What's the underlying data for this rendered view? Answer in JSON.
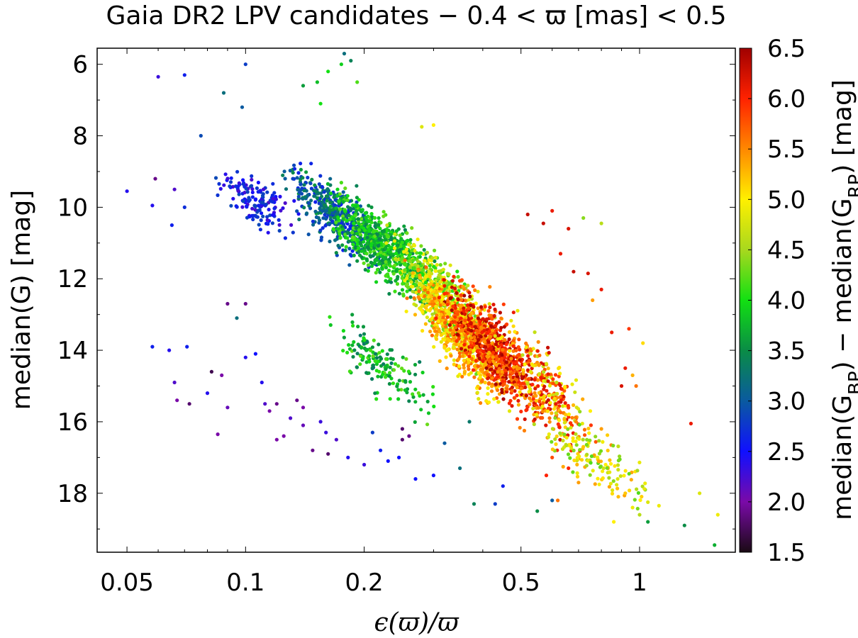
{
  "chart_data": {
    "type": "scatter",
    "title": "Gaia DR2 LPV candidates  −  0.4 < ϖ [mas] < 0.5",
    "xlabel": "ϵ(ϖ)/ϖ",
    "ylabel": "median(G)  [mag]",
    "colorbar_label": "median(G_BP) − median(G_RP)  [mag]",
    "x_scale": "log",
    "xlim": [
      0.042,
      1.75
    ],
    "ylim": [
      19.65,
      5.55
    ],
    "x_ticks": [
      0.05,
      0.1,
      0.2,
      0.5,
      1
    ],
    "x_tick_labels": [
      "0.05",
      "0.1",
      "0.2",
      "0.5",
      "1"
    ],
    "y_ticks": [
      6,
      8,
      10,
      12,
      14,
      16,
      18
    ],
    "y_tick_labels": [
      "6",
      "8",
      "10",
      "12",
      "14",
      "16",
      "18"
    ],
    "colorbar_range": [
      1.5,
      6.5
    ],
    "colorbar_ticks": [
      1.5,
      2.0,
      2.5,
      3.0,
      3.5,
      4.0,
      4.5,
      5.0,
      5.5,
      6.0,
      6.5
    ],
    "colorbar_tick_labels": [
      "1.5",
      "2.0",
      "2.5",
      "3.0",
      "3.5",
      "4.0",
      "4.5",
      "5.0",
      "5.5",
      "6.0",
      "6.5"
    ],
    "colorbar_colors": [
      "#1a0a14",
      "#7a0aa8",
      "#1010ff",
      "#0a5aa0",
      "#0a8c46",
      "#12e012",
      "#a8d81e",
      "#fff000",
      "#ff8800",
      "#ff2200",
      "#a00000"
    ],
    "grid": false,
    "colorbar_position": "right",
    "points": [
      [
        0.05,
        9.55,
        2.4
      ],
      [
        0.06,
        6.35,
        2.3
      ],
      [
        0.07,
        6.3,
        2.6
      ],
      [
        0.1,
        6.0,
        2.8
      ],
      [
        0.178,
        5.7,
        3.2
      ],
      [
        0.077,
        8.0,
        2.9
      ],
      [
        0.088,
        6.8,
        3.2
      ],
      [
        0.098,
        7.2,
        3.0
      ],
      [
        0.14,
        6.6,
        3.6
      ],
      [
        0.152,
        6.5,
        3.8
      ],
      [
        0.162,
        6.2,
        4.0
      ],
      [
        0.175,
        6.0,
        3.9
      ],
      [
        0.185,
        5.9,
        3.4
      ],
      [
        0.192,
        6.5,
        4.2
      ],
      [
        0.155,
        7.1,
        4.0
      ],
      [
        0.28,
        7.75,
        4.8
      ],
      [
        0.3,
        7.7,
        5.0
      ],
      [
        0.059,
        9.2,
        1.9
      ],
      [
        0.066,
        9.5,
        2.2
      ],
      [
        0.058,
        9.95,
        2.4
      ],
      [
        0.065,
        10.5,
        2.6
      ],
      [
        0.07,
        10.0,
        2.7
      ],
      [
        0.1,
        12.7,
        1.9
      ],
      [
        0.09,
        12.7,
        1.9
      ],
      [
        0.095,
        13.1,
        3.2
      ],
      [
        0.058,
        13.9,
        2.6
      ],
      [
        0.064,
        14.0,
        2.4
      ],
      [
        0.071,
        13.9,
        2.6
      ],
      [
        0.066,
        14.9,
        2.2
      ],
      [
        0.067,
        15.4,
        2.0
      ],
      [
        0.082,
        14.6,
        1.7
      ],
      [
        0.087,
        14.7,
        2.0
      ],
      [
        0.08,
        15.2,
        2.4
      ],
      [
        0.09,
        15.6,
        2.1
      ],
      [
        0.1,
        14.2,
        2.4
      ],
      [
        0.106,
        14.1,
        2.5
      ],
      [
        0.11,
        14.9,
        2.4
      ],
      [
        0.112,
        15.5,
        2.2
      ],
      [
        0.12,
        15.5,
        1.9
      ],
      [
        0.115,
        15.7,
        2.0
      ],
      [
        0.13,
        15.9,
        2.2
      ],
      [
        0.135,
        15.4,
        1.9
      ],
      [
        0.125,
        16.4,
        2.0
      ],
      [
        0.14,
        16.1,
        2.1
      ],
      [
        0.148,
        16.8,
        1.9
      ],
      [
        0.155,
        16.0,
        2.3
      ],
      [
        0.162,
        16.9,
        1.8
      ],
      [
        0.17,
        16.5,
        2.2
      ],
      [
        0.182,
        17.0,
        2.4
      ],
      [
        0.2,
        17.2,
        2.3
      ],
      [
        0.21,
        16.3,
        2.8
      ],
      [
        0.22,
        16.8,
        2.6
      ],
      [
        0.23,
        17.1,
        2.5
      ],
      [
        0.25,
        16.5,
        1.8
      ],
      [
        0.245,
        17.0,
        2.5
      ],
      [
        0.27,
        17.6,
        2.5
      ],
      [
        0.3,
        17.5,
        2.5
      ],
      [
        0.32,
        16.6,
        3.0
      ],
      [
        0.35,
        17.3,
        3.2
      ],
      [
        0.37,
        16.0,
        3.3
      ],
      [
        0.25,
        16.2,
        1.8
      ],
      [
        0.26,
        16.4,
        1.9
      ],
      [
        0.14,
        15.6,
        2.0
      ],
      [
        0.16,
        16.3,
        2.3
      ],
      [
        0.072,
        15.5,
        1.8
      ],
      [
        0.085,
        16.35,
        2.0
      ],
      [
        0.12,
        16.5,
        2.0
      ],
      [
        0.45,
        17.8,
        2.6
      ],
      [
        0.43,
        18.3,
        2.8
      ],
      [
        0.38,
        18.3,
        3.4
      ],
      [
        0.55,
        18.5,
        3.5
      ],
      [
        0.6,
        18.2,
        3.0
      ],
      [
        1.05,
        18.8,
        3.6
      ],
      [
        1.3,
        18.9,
        3.5
      ],
      [
        1.55,
        19.45,
        3.7
      ],
      [
        1.35,
        16.05,
        6.1
      ],
      [
        1.58,
        18.6,
        4.9
      ],
      [
        1.42,
        18.0,
        4.8
      ],
      [
        0.72,
        10.3,
        4.4
      ],
      [
        0.8,
        10.45,
        4.6
      ],
      [
        0.52,
        10.2,
        6.3
      ],
      [
        0.6,
        10.1,
        6.1
      ],
      [
        0.57,
        10.45,
        6.3
      ],
      [
        0.66,
        10.6,
        6.2
      ],
      [
        0.63,
        11.3,
        6.1
      ],
      [
        0.68,
        11.8,
        6.3
      ],
      [
        0.74,
        11.85,
        6.2
      ],
      [
        0.8,
        12.3,
        6.1
      ],
      [
        0.76,
        12.6,
        5.4
      ],
      [
        0.85,
        13.5,
        6.1
      ],
      [
        0.94,
        13.4,
        5.9
      ],
      [
        1.02,
        13.8,
        5.1
      ],
      [
        0.92,
        14.5,
        6.1
      ],
      [
        0.96,
        14.7,
        5.3
      ],
      [
        0.98,
        15.0,
        5.6
      ],
      [
        0.9,
        15.0,
        6.2
      ],
      [
        0.75,
        15.7,
        5.0
      ],
      [
        0.69,
        16.0,
        5.5
      ],
      [
        0.8,
        16.2,
        5.4
      ],
      [
        0.72,
        16.7,
        5.2
      ],
      [
        0.82,
        17.2,
        5.0
      ],
      [
        0.88,
        17.6,
        4.8
      ],
      [
        0.92,
        18.0,
        5.2
      ],
      [
        0.96,
        18.4,
        4.9
      ],
      [
        0.86,
        18.8,
        5.0
      ],
      [
        1.0,
        18.6,
        4.6
      ],
      [
        1.05,
        18.25,
        4.8
      ],
      [
        1.12,
        18.35,
        4.9
      ],
      [
        0.7,
        17.7,
        5.4
      ],
      [
        0.66,
        17.3,
        6.0
      ],
      [
        0.6,
        17.0,
        5.8
      ],
      [
        0.58,
        17.5,
        6.0
      ],
      [
        0.62,
        18.2,
        5.6
      ]
    ],
    "clusters": [
      {
        "x": [
          0.08,
          0.14
        ],
        "y": [
          8.7,
          10.9
        ],
        "c": [
          2.2,
          2.9
        ],
        "n": 150,
        "seed": 11
      },
      {
        "x": [
          0.12,
          0.25
        ],
        "y": [
          8.4,
          12.2
        ],
        "c": [
          2.6,
          3.6
        ],
        "n": 420,
        "seed": 22
      },
      {
        "x": [
          0.15,
          0.34
        ],
        "y": [
          9.0,
          13.3
        ],
        "c": [
          3.4,
          4.3
        ],
        "n": 650,
        "seed": 33
      },
      {
        "x": [
          0.22,
          0.46
        ],
        "y": [
          10.0,
          15.2
        ],
        "c": [
          4.0,
          5.0
        ],
        "n": 520,
        "seed": 44
      },
      {
        "x": [
          0.25,
          0.5
        ],
        "y": [
          11.0,
          16.3
        ],
        "c": [
          4.8,
          5.7
        ],
        "n": 600,
        "seed": 55
      },
      {
        "x": [
          0.3,
          0.62
        ],
        "y": [
          11.5,
          16.6
        ],
        "c": [
          5.3,
          6.5
        ],
        "n": 720,
        "seed": 66
      },
      {
        "x": [
          0.42,
          0.8
        ],
        "y": [
          12.5,
          17.7
        ],
        "c": [
          4.6,
          6.3
        ],
        "n": 260,
        "seed": 77
      },
      {
        "x": [
          0.5,
          1.15
        ],
        "y": [
          15.0,
          18.9
        ],
        "c": [
          4.2,
          5.4
        ],
        "n": 150,
        "seed": 88
      },
      {
        "x": [
          0.15,
          0.33
        ],
        "y": [
          12.6,
          16.3
        ],
        "c": [
          3.3,
          4.3
        ],
        "n": 160,
        "seed": 99
      }
    ]
  }
}
